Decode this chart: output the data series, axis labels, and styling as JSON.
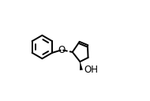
{
  "bg_color": "#ffffff",
  "line_color": "#000000",
  "bond_lw": 1.4,
  "figsize": [
    1.9,
    1.28
  ],
  "dpi": 100,
  "oh_label": "OH",
  "o_label": "O",
  "font_size": 8.5,
  "bx": 0.175,
  "by": 0.535,
  "br": 0.115,
  "cp_ring_scale": 0.1
}
